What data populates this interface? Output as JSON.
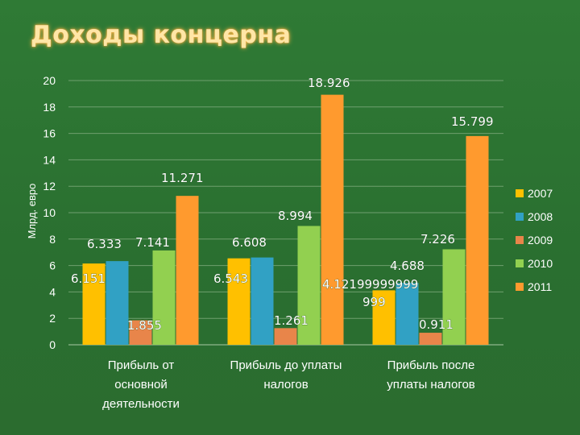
{
  "title": "Доходы концерна",
  "chart_data": {
    "type": "bar",
    "title": "Доходы концерна",
    "ylabel": "Млрд. евро",
    "xlabel": "",
    "ylim": [
      0,
      20
    ],
    "yticks": [
      0,
      2,
      4,
      6,
      8,
      10,
      12,
      14,
      16,
      18,
      20
    ],
    "grid": true,
    "legend_position": "right",
    "categories": [
      [
        "Прибыль от",
        "основной",
        "деятельности"
      ],
      [
        "Прибыль до уплаты",
        "налогов"
      ],
      [
        "Прибыль после",
        "уплаты налогов"
      ]
    ],
    "series": [
      {
        "name": "2007",
        "color": "#ffc000",
        "values": [
          6.151,
          6.543,
          4.12199999999999
        ]
      },
      {
        "name": "2008",
        "color": "#31a1c4",
        "values": [
          6.333,
          6.608,
          4.688
        ]
      },
      {
        "name": "2009",
        "color": "#e8854a",
        "values": [
          1.855,
          1.261,
          0.911
        ]
      },
      {
        "name": "2010",
        "color": "#92d050",
        "values": [
          7.141,
          8.994,
          7.226
        ]
      },
      {
        "name": "2011",
        "color": "#ff9a2e",
        "values": [
          11.271,
          18.926,
          15.799
        ]
      }
    ],
    "data_labels": [
      [
        "6.151",
        "6.543",
        "4.12199999999999"
      ],
      [
        "6.333",
        "6.608",
        "4.688"
      ],
      [
        "1.855",
        "1.261",
        "0.911"
      ],
      [
        "7.141",
        "8.994",
        "7.226"
      ],
      [
        "11.271",
        "18.926",
        "15.799"
      ]
    ]
  }
}
